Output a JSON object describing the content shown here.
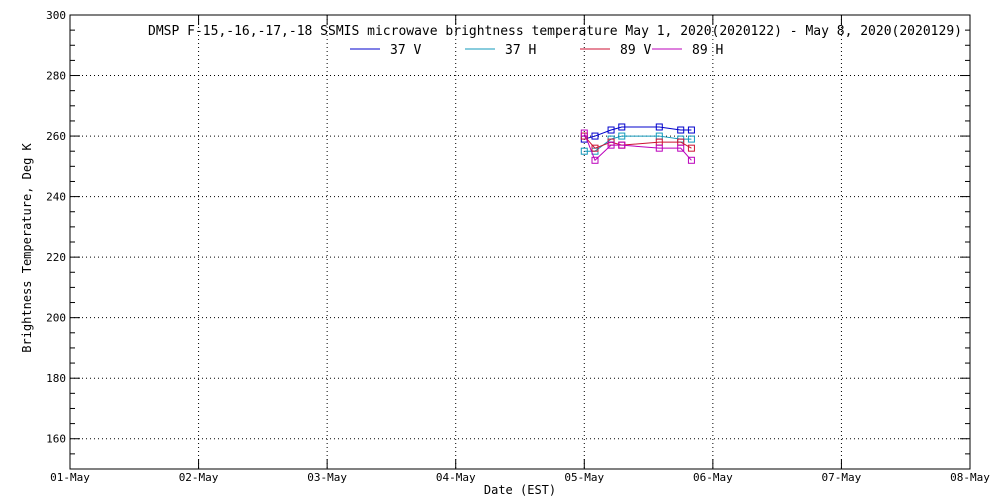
{
  "chart_data": {
    "type": "line",
    "title": "DMSP F-15,-16,-17,-18 SSMIS microwave brightness temperature May  1, 2020(2020122) - May  8, 2020(2020129)",
    "xlabel": "Date (EST)",
    "ylabel": "Brightness Temperature, Deg K",
    "xlim": [
      "2020-05-01",
      "2020-05-08"
    ],
    "ylim": [
      150,
      300
    ],
    "x_ticks": [
      "01-May",
      "02-May",
      "03-May",
      "04-May",
      "05-May",
      "06-May",
      "07-May",
      "08-May"
    ],
    "y_ticks": [
      160,
      180,
      200,
      220,
      240,
      260,
      280,
      300
    ],
    "grid": true,
    "legend_position": "top",
    "series": [
      {
        "name": "37 V",
        "color": "#0000cc",
        "x": [
          "2020-05-05 00:00",
          "2020-05-05 02:00",
          "2020-05-05 05:00",
          "2020-05-05 07:00",
          "2020-05-05 14:00",
          "2020-05-05 18:00",
          "2020-05-05 20:00"
        ],
        "values": [
          259,
          260,
          262,
          263,
          263,
          262,
          262
        ]
      },
      {
        "name": "37 H",
        "color": "#1199bb",
        "x": [
          "2020-05-05 00:00",
          "2020-05-05 02:00",
          "2020-05-05 05:00",
          "2020-05-05 07:00",
          "2020-05-05 14:00",
          "2020-05-05 18:00",
          "2020-05-05 20:00"
        ],
        "values": [
          255,
          255,
          259,
          260,
          260,
          259,
          259
        ]
      },
      {
        "name": "89 V",
        "color": "#cc1133",
        "x": [
          "2020-05-05 00:00",
          "2020-05-05 02:00",
          "2020-05-05 05:00",
          "2020-05-05 07:00",
          "2020-05-05 14:00",
          "2020-05-05 18:00",
          "2020-05-05 20:00"
        ],
        "values": [
          260,
          256,
          258,
          257,
          258,
          258,
          256
        ]
      },
      {
        "name": "89 H",
        "color": "#bb00bb",
        "x": [
          "2020-05-05 00:00",
          "2020-05-05 02:00",
          "2020-05-05 05:00",
          "2020-05-05 07:00",
          "2020-05-05 14:00",
          "2020-05-05 18:00",
          "2020-05-05 20:00"
        ],
        "values": [
          261,
          252,
          257,
          257,
          256,
          256,
          252
        ]
      }
    ]
  }
}
